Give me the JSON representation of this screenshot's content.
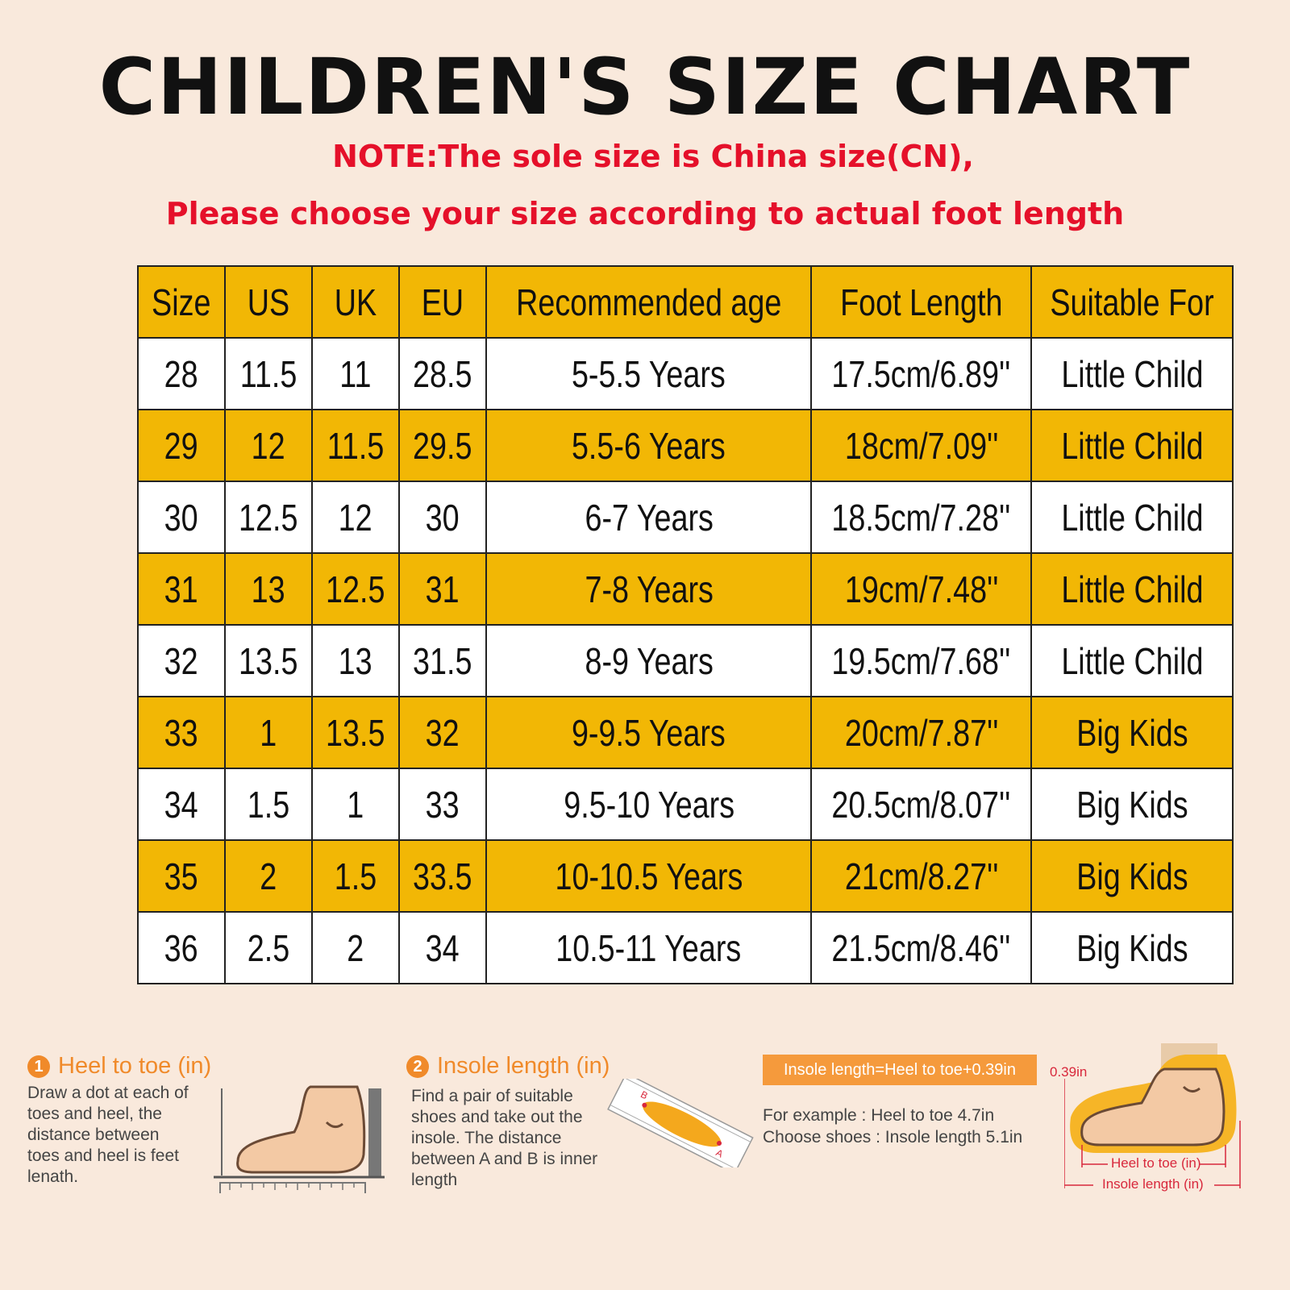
{
  "title": "CHILDREN'S SIZE CHART",
  "note_line1": "NOTE:The sole size is China size(CN),",
  "note_line2": "Please choose your size according to actual foot length",
  "table": {
    "headers": [
      "Size",
      "US",
      "UK",
      "EU",
      "Recommended age",
      "Foot Length",
      "Suitable For"
    ],
    "rows": [
      [
        "28",
        "11.5",
        "11",
        "28.5",
        "5-5.5 Years",
        "17.5cm/6.89''",
        "Little Child"
      ],
      [
        "29",
        "12",
        "11.5",
        "29.5",
        "5.5-6 Years",
        "18cm/7.09''",
        "Little Child"
      ],
      [
        "30",
        "12.5",
        "12",
        "30",
        "6-7 Years",
        "18.5cm/7.28''",
        "Little Child"
      ],
      [
        "31",
        "13",
        "12.5",
        "31",
        "7-8 Years",
        "19cm/7.48''",
        "Little Child"
      ],
      [
        "32",
        "13.5",
        "13",
        "31.5",
        "8-9 Years",
        "19.5cm/7.68''",
        "Little Child"
      ],
      [
        "33",
        "1",
        "13.5",
        "32",
        "9-9.5 Years",
        "20cm/7.87''",
        "Big Kids"
      ],
      [
        "34",
        "1.5",
        "1",
        "33",
        "9.5-10 Years",
        "20.5cm/8.07''",
        "Big Kids"
      ],
      [
        "35",
        "2",
        "1.5",
        "33.5",
        "10-10.5 Years",
        "21cm/8.27''",
        "Big Kids"
      ],
      [
        "36",
        "2.5",
        "2",
        "34",
        "10.5-11 Years",
        "21.5cm/8.46''",
        "Big Kids"
      ]
    ]
  },
  "step1": {
    "number": "1",
    "title": "Heel to toe (in)",
    "text": [
      "Draw a dot at each of",
      "toes and heel, the",
      "distance between",
      "toes and heel is feet",
      "lenath."
    ]
  },
  "step2": {
    "number": "2",
    "title": "Insole length (in)",
    "text": [
      "Find a pair of suitable",
      "shoes and take out the",
      "insole. The distance",
      "between A and B is inner",
      "length"
    ],
    "label_a": "A",
    "label_b": "B"
  },
  "formula": "Insole length=Heel to toe+0.39in",
  "example_line1": "For example : Heel to toe  4.7in",
  "example_line2": "Choose shoes : Insole length 5.1in",
  "diagram": {
    "offset_label": "0.39in",
    "heel_to_toe_label": "Heel to toe (in)",
    "insole_label": "Insole length (in)"
  },
  "colors": {
    "header_bg": "#f2b705",
    "note_red": "#e5102a",
    "accent_orange": "#f08a2a",
    "page_bg": "#f9e9dc"
  }
}
